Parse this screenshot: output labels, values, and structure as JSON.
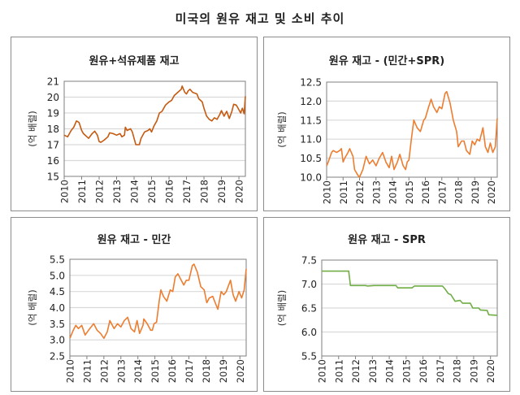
{
  "title": "미국의 원유 재고 및 소비 추이",
  "chart_data": [
    {
      "type": "line",
      "title": "원유+석유제품 재고",
      "ylabel": "(억 배럴)",
      "xlim": [
        2010,
        2020.37
      ],
      "ylim": [
        15,
        21
      ],
      "yticks": [
        "15",
        "16",
        "17",
        "18",
        "19",
        "20",
        "21"
      ],
      "xticks": [
        "2010",
        "2011",
        "2012",
        "2013",
        "2014",
        "2015",
        "2016",
        "2017",
        "2018",
        "2019",
        "2020"
      ],
      "grid": true,
      "color": "#c55a11",
      "x": [
        2010.0,
        2010.2,
        2010.4,
        2010.55,
        2010.7,
        2010.85,
        2011.0,
        2011.1,
        2011.3,
        2011.4,
        2011.6,
        2011.75,
        2011.9,
        2012.0,
        2012.1,
        2012.3,
        2012.5,
        2012.6,
        2012.8,
        2013.0,
        2013.2,
        2013.3,
        2013.45,
        2013.5,
        2013.6,
        2013.8,
        2013.9,
        2014.0,
        2014.1,
        2014.3,
        2014.4,
        2014.6,
        2014.8,
        2014.9,
        2015.0,
        2015.15,
        2015.3,
        2015.45,
        2015.6,
        2015.8,
        2016.0,
        2016.15,
        2016.3,
        2016.5,
        2016.7,
        2016.75,
        2016.9,
        2017.0,
        2017.1,
        2017.2,
        2017.35,
        2017.6,
        2017.7,
        2017.9,
        2018.0,
        2018.15,
        2018.3,
        2018.45,
        2018.6,
        2018.75,
        2018.9,
        2019.0,
        2019.15,
        2019.3,
        2019.45,
        2019.6,
        2019.7,
        2019.85,
        2019.95,
        2020.1,
        2020.2,
        2020.3,
        2020.37
      ],
      "y": [
        17.6,
        17.5,
        17.9,
        18.1,
        18.5,
        18.4,
        17.9,
        17.7,
        17.5,
        17.4,
        17.7,
        17.85,
        17.6,
        17.2,
        17.15,
        17.3,
        17.5,
        17.75,
        17.7,
        17.6,
        17.7,
        17.5,
        17.6,
        18.1,
        17.9,
        18.0,
        17.8,
        17.4,
        17.0,
        17.0,
        17.4,
        17.8,
        17.9,
        18.0,
        17.8,
        18.2,
        18.5,
        19.0,
        19.1,
        19.5,
        19.7,
        19.8,
        20.1,
        20.3,
        20.5,
        20.7,
        20.3,
        20.2,
        20.4,
        20.5,
        20.3,
        20.2,
        19.9,
        19.7,
        19.3,
        18.8,
        18.6,
        18.5,
        18.7,
        18.6,
        18.9,
        19.15,
        18.8,
        19.1,
        18.65,
        19.1,
        19.55,
        19.5,
        19.3,
        19.0,
        19.3,
        18.95,
        20.05
      ]
    },
    {
      "type": "line",
      "title": "원유 재고 - (민간+SPR)",
      "ylabel": "(억 배럴)",
      "xlim": [
        2010,
        2020.37
      ],
      "ylim": [
        10,
        12.5
      ],
      "yticks": [
        "10.0",
        "10.5",
        "11.0",
        "11.5",
        "12.0",
        "12.5"
      ],
      "xticks": [
        "2010",
        "2011",
        "2012",
        "2013",
        "2014",
        "2015",
        "2016",
        "2017",
        "2018",
        "2019",
        "2020"
      ],
      "grid": true,
      "color": "#ed7d31",
      "x": [
        2010.0,
        2010.1,
        2010.3,
        2010.4,
        2010.6,
        2010.8,
        2010.9,
        2011.0,
        2011.1,
        2011.3,
        2011.4,
        2011.6,
        2011.7,
        2011.9,
        2012.0,
        2012.2,
        2012.4,
        2012.6,
        2012.8,
        2013.0,
        2013.2,
        2013.4,
        2013.6,
        2013.8,
        2013.95,
        2014.1,
        2014.3,
        2014.45,
        2014.65,
        2014.8,
        2014.9,
        2015.0,
        2015.15,
        2015.3,
        2015.5,
        2015.7,
        2015.9,
        2016.0,
        2016.2,
        2016.35,
        2016.5,
        2016.7,
        2016.85,
        2017.0,
        2017.2,
        2017.3,
        2017.5,
        2017.7,
        2017.9,
        2018.0,
        2018.2,
        2018.35,
        2018.5,
        2018.7,
        2018.85,
        2019.0,
        2019.15,
        2019.3,
        2019.5,
        2019.65,
        2019.8,
        2019.95,
        2020.1,
        2020.25,
        2020.37
      ],
      "y": [
        10.3,
        10.4,
        10.65,
        10.7,
        10.65,
        10.7,
        10.75,
        10.4,
        10.5,
        10.65,
        10.75,
        10.55,
        10.2,
        10.05,
        10.0,
        10.2,
        10.55,
        10.35,
        10.45,
        10.3,
        10.5,
        10.65,
        10.4,
        10.25,
        10.55,
        10.2,
        10.4,
        10.6,
        10.3,
        10.2,
        10.4,
        10.45,
        11.0,
        11.5,
        11.3,
        11.2,
        11.5,
        11.55,
        11.85,
        12.05,
        11.85,
        11.7,
        11.85,
        11.8,
        12.2,
        12.25,
        11.95,
        11.5,
        11.2,
        10.8,
        10.95,
        10.95,
        10.7,
        10.6,
        10.95,
        10.85,
        11.0,
        10.95,
        11.3,
        10.8,
        10.65,
        10.9,
        10.65,
        10.8,
        11.55
      ]
    },
    {
      "type": "line",
      "title": "원유 재고 - 민간",
      "ylabel": "(억 배럴)",
      "xlim": [
        2010,
        2020.37
      ],
      "ylim": [
        2.5,
        5.5
      ],
      "yticks": [
        "2.5",
        "3.0",
        "3.5",
        "4.0",
        "4.5",
        "5.0",
        "5.5"
      ],
      "xticks": [
        "2010",
        "2011",
        "2012",
        "2013",
        "2014",
        "2015",
        "2016",
        "2017",
        "2018",
        "2019",
        "2020"
      ],
      "grid": true,
      "color": "#ed7d31",
      "x": [
        2010.0,
        2010.2,
        2010.35,
        2010.5,
        2010.7,
        2010.9,
        2011.1,
        2011.4,
        2011.6,
        2011.8,
        2012.0,
        2012.2,
        2012.35,
        2012.6,
        2012.8,
        2013.0,
        2013.2,
        2013.4,
        2013.6,
        2013.8,
        2013.95,
        2014.1,
        2014.3,
        2014.35,
        2014.55,
        2014.75,
        2014.85,
        2014.95,
        2015.1,
        2015.25,
        2015.35,
        2015.5,
        2015.7,
        2015.9,
        2016.05,
        2016.2,
        2016.35,
        2016.5,
        2016.7,
        2016.85,
        2017.0,
        2017.2,
        2017.3,
        2017.5,
        2017.7,
        2017.9,
        2018.05,
        2018.2,
        2018.4,
        2018.55,
        2018.7,
        2018.9,
        2019.05,
        2019.2,
        2019.45,
        2019.6,
        2019.75,
        2019.95,
        2020.1,
        2020.25,
        2020.37
      ],
      "y": [
        3.05,
        3.3,
        3.45,
        3.35,
        3.45,
        3.15,
        3.3,
        3.5,
        3.3,
        3.2,
        3.05,
        3.25,
        3.6,
        3.35,
        3.5,
        3.4,
        3.6,
        3.7,
        3.35,
        3.25,
        3.6,
        3.2,
        3.45,
        3.65,
        3.5,
        3.3,
        3.3,
        3.5,
        3.55,
        4.2,
        4.55,
        4.35,
        4.2,
        4.55,
        4.5,
        4.95,
        5.05,
        4.9,
        4.7,
        4.85,
        4.85,
        5.3,
        5.35,
        5.1,
        4.65,
        4.55,
        4.15,
        4.3,
        4.35,
        4.15,
        3.95,
        4.5,
        4.4,
        4.5,
        4.85,
        4.4,
        4.2,
        4.5,
        4.3,
        4.55,
        5.2
      ]
    },
    {
      "type": "line",
      "title": "원유 재고 - SPR",
      "ylabel": "(억 배럴)",
      "xlim": [
        2010,
        2020.4
      ],
      "ylim": [
        5.5,
        7.5
      ],
      "yticks": [
        "5.5",
        "6.0",
        "6.5",
        "7.0",
        "7.5"
      ],
      "xticks": [
        "2010",
        "2011",
        "2012",
        "2013",
        "2014",
        "2015",
        "2016",
        "2017",
        "2018",
        "2019",
        "2020"
      ],
      "grid": true,
      "color": "#70ad47",
      "x": [
        2010.0,
        2011.6,
        2011.7,
        2012.6,
        2012.7,
        2013.1,
        2014.4,
        2014.5,
        2015.35,
        2015.5,
        2017.15,
        2017.3,
        2017.5,
        2017.65,
        2017.9,
        2018.2,
        2018.35,
        2018.8,
        2018.95,
        2019.3,
        2019.4,
        2019.8,
        2019.9,
        2020.4
      ],
      "y": [
        7.27,
        7.27,
        6.97,
        6.97,
        6.96,
        6.97,
        6.97,
        6.92,
        6.92,
        6.96,
        6.96,
        6.9,
        6.8,
        6.78,
        6.64,
        6.66,
        6.6,
        6.6,
        6.5,
        6.5,
        6.46,
        6.45,
        6.36,
        6.35
      ]
    }
  ]
}
